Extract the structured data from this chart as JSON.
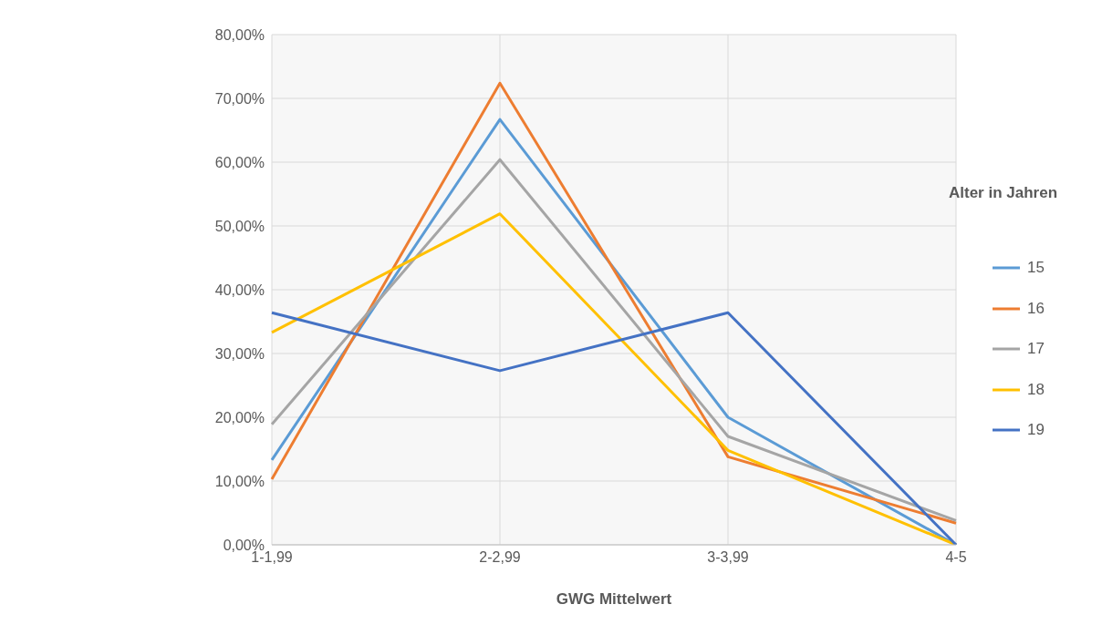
{
  "chart_data": {
    "type": "line",
    "xlabel": "GWG Mittelwert",
    "legend_title": "Alter in Jahren",
    "categories": [
      "1-1,99",
      "2-2,99",
      "3-3,99",
      "4-5"
    ],
    "series": [
      {
        "name": "15",
        "color": "#5b9bd5",
        "values": [
          13.3,
          66.7,
          20,
          0
        ]
      },
      {
        "name": "16",
        "color": "#ed7d31",
        "values": [
          10.3,
          72.4,
          13.8,
          3.4
        ]
      },
      {
        "name": "17",
        "color": "#a5a5a5",
        "values": [
          18.9,
          60.4,
          17,
          3.8
        ]
      },
      {
        "name": "18",
        "color": "#ffc000",
        "values": [
          33.3,
          51.9,
          14.8,
          0
        ]
      },
      {
        "name": "19",
        "color": "#4472c4",
        "values": [
          36.4,
          27.3,
          36.4,
          0
        ]
      }
    ],
    "ylim": [
      0,
      80
    ],
    "yticks": [
      {
        "value": 0,
        "label": "0,00%"
      },
      {
        "value": 10,
        "label": "10,00%"
      },
      {
        "value": 20,
        "label": "20,00%"
      },
      {
        "value": 30,
        "label": "30,00%"
      },
      {
        "value": 40,
        "label": "40,00%"
      },
      {
        "value": 50,
        "label": "50,00%"
      },
      {
        "value": 60,
        "label": "60,00%"
      },
      {
        "value": 70,
        "label": "70,00%"
      },
      {
        "value": 80,
        "label": "80,00%"
      }
    ],
    "grid": true,
    "legend": "right",
    "marker": "none",
    "line_style": "solid"
  }
}
